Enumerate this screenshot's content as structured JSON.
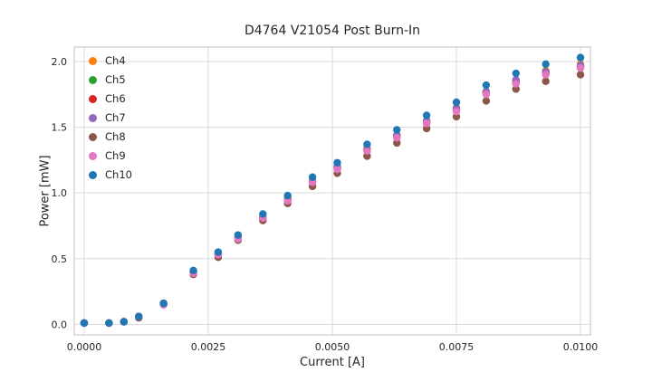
{
  "colors": {
    "background": "#ffffff",
    "grid": "#d9d9d9",
    "spine": "#cccccc",
    "text": "#262626"
  },
  "chart_data": {
    "type": "scatter",
    "title": "D4764 V21054 Post Burn-In",
    "xlabel": "Current [A]",
    "ylabel": "Power [mW]",
    "grid": true,
    "legend_position": "upper left",
    "xlim": [
      -0.0002,
      0.0102
    ],
    "ylim": [
      -0.08,
      2.11
    ],
    "xticks": {
      "values": [
        0.0,
        0.0025,
        0.005,
        0.0075,
        0.01
      ],
      "labels": [
        "0.0000",
        "0.0025",
        "0.0050",
        "0.0075",
        "0.0100"
      ]
    },
    "yticks": {
      "values": [
        0.0,
        0.5,
        1.0,
        1.5,
        2.0
      ],
      "labels": [
        "0.0",
        "0.5",
        "1.0",
        "1.5",
        "2.0"
      ]
    },
    "x": [
      0.0,
      0.0005,
      0.0008,
      0.0011,
      0.0016,
      0.0022,
      0.0027,
      0.0031,
      0.0036,
      0.0041,
      0.0046,
      0.0051,
      0.0057,
      0.0063,
      0.0069,
      0.0075,
      0.0081,
      0.0087,
      0.0093,
      0.01
    ],
    "series": [
      {
        "name": "Ch4",
        "color": "#ff7f0e",
        "values": [
          0.01,
          0.01,
          0.02,
          0.06,
          0.16,
          0.4,
          0.54,
          0.66,
          0.82,
          0.96,
          1.09,
          1.2,
          1.34,
          1.44,
          1.55,
          1.65,
          1.77,
          1.86,
          1.93,
          1.98
        ]
      },
      {
        "name": "Ch5",
        "color": "#2ca02c",
        "values": [
          0.01,
          0.01,
          0.02,
          0.06,
          0.16,
          0.4,
          0.53,
          0.66,
          0.81,
          0.95,
          1.09,
          1.19,
          1.33,
          1.44,
          1.54,
          1.64,
          1.77,
          1.85,
          1.92,
          1.97
        ]
      },
      {
        "name": "Ch6",
        "color": "#d62728",
        "values": [
          0.01,
          0.01,
          0.02,
          0.06,
          0.15,
          0.4,
          0.53,
          0.66,
          0.81,
          0.95,
          1.08,
          1.19,
          1.32,
          1.43,
          1.53,
          1.63,
          1.76,
          1.84,
          1.91,
          1.96
        ]
      },
      {
        "name": "Ch7",
        "color": "#9467bd",
        "values": [
          0.01,
          0.01,
          0.02,
          0.06,
          0.16,
          0.4,
          0.53,
          0.66,
          0.82,
          0.95,
          1.09,
          1.2,
          1.33,
          1.44,
          1.55,
          1.64,
          1.77,
          1.86,
          1.92,
          1.97
        ]
      },
      {
        "name": "Ch8",
        "color": "#8c564b",
        "values": [
          0.01,
          0.01,
          0.02,
          0.05,
          0.15,
          0.38,
          0.51,
          0.64,
          0.79,
          0.92,
          1.05,
          1.15,
          1.28,
          1.38,
          1.49,
          1.58,
          1.7,
          1.79,
          1.85,
          1.9
        ]
      },
      {
        "name": "Ch9",
        "color": "#e377c2",
        "values": [
          0.01,
          0.01,
          0.02,
          0.06,
          0.15,
          0.39,
          0.53,
          0.65,
          0.81,
          0.94,
          1.08,
          1.18,
          1.32,
          1.42,
          1.53,
          1.62,
          1.75,
          1.83,
          1.9,
          1.95
        ]
      },
      {
        "name": "Ch10",
        "color": "#1f77b4",
        "values": [
          0.01,
          0.01,
          0.02,
          0.06,
          0.16,
          0.41,
          0.55,
          0.68,
          0.84,
          0.98,
          1.12,
          1.23,
          1.37,
          1.48,
          1.59,
          1.69,
          1.82,
          1.91,
          1.98,
          2.03
        ]
      }
    ]
  }
}
